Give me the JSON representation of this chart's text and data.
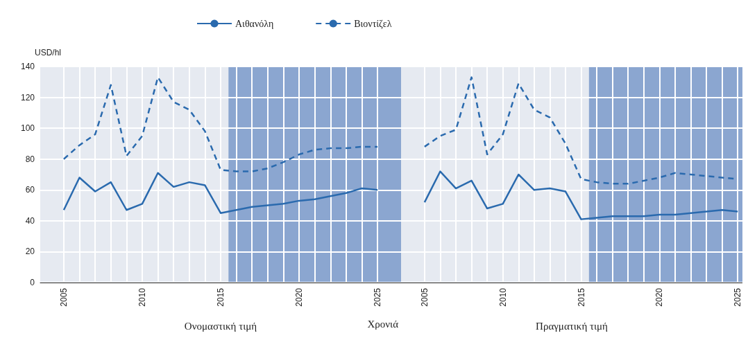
{
  "chart_data": [
    {
      "type": "line",
      "xlabel": "Ονομαστική τιμή",
      "ylabel": "USD/hl",
      "annotations": [
        "Χρονιά"
      ],
      "x": [
        2005,
        2006,
        2007,
        2008,
        2009,
        2010,
        2011,
        2012,
        2013,
        2014,
        2015,
        2016,
        2017,
        2018,
        2019,
        2020,
        2021,
        2022,
        2023,
        2024,
        2025
      ],
      "series": [
        {
          "name": "Αιθανόλη",
          "color": "#2a6aae",
          "line_style": "solid",
          "values": [
            47,
            68,
            59,
            65,
            47,
            51,
            71,
            62,
            65,
            63,
            45,
            47,
            49,
            50,
            51,
            53,
            54,
            56,
            58,
            61,
            60
          ]
        },
        {
          "name": "Βιοντίζελ",
          "color": "#2a6aae",
          "line_style": "dashed",
          "values": [
            80,
            89,
            96,
            128,
            82,
            95,
            133,
            117,
            112,
            98,
            73,
            72,
            72,
            74,
            78,
            83,
            86,
            87,
            87,
            88,
            88
          ]
        }
      ],
      "xlim": [
        2003.5,
        2026.5
      ],
      "ylim": [
        0,
        140
      ],
      "yticks": [
        0,
        20,
        40,
        60,
        80,
        100,
        120,
        140
      ],
      "xticks": [
        2005,
        {
          "value": 2006,
          "label": null
        },
        {
          "value": 2007,
          "label": null
        },
        {
          "value": 2008,
          "label": null
        },
        {
          "value": 2009,
          "label": null
        },
        2010,
        {
          "value": 2011,
          "label": null
        },
        {
          "value": 2012,
          "label": null
        },
        {
          "value": 2013,
          "label": null
        },
        {
          "value": 2014,
          "label": null
        },
        2015,
        {
          "value": 2016,
          "label": null
        },
        {
          "value": 2017,
          "label": null
        },
        {
          "value": 2018,
          "label": null
        },
        {
          "value": 2019,
          "label": null
        },
        2020,
        {
          "value": 2021,
          "label": null
        },
        {
          "value": 2022,
          "label": null
        },
        {
          "value": 2023,
          "label": null
        },
        {
          "value": 2024,
          "label": null
        },
        2025
      ],
      "bands": [
        {
          "axis": "x",
          "from": 2015.5,
          "to": 2026.5,
          "color": "#8ba6d0"
        }
      ],
      "grid": true,
      "legend": "top",
      "marker": "none"
    },
    {
      "type": "line",
      "xlabel": "Πραγματική τιμή",
      "x": [
        2005,
        2006,
        2007,
        2008,
        2009,
        2010,
        2011,
        2012,
        2013,
        2014,
        2015,
        2016,
        2017,
        2018,
        2019,
        2020,
        2021,
        2022,
        2023,
        2024,
        2025
      ],
      "series": [
        {
          "color": "#2a6aae",
          "line_style": "solid",
          "values": [
            52,
            72,
            61,
            66,
            48,
            51,
            70,
            60,
            61,
            59,
            41,
            42,
            43,
            43,
            43,
            44,
            44,
            45,
            46,
            47,
            46
          ]
        },
        {
          "color": "#2a6aae",
          "line_style": "dashed",
          "values": [
            88,
            95,
            99,
            133,
            83,
            96,
            129,
            112,
            107,
            90,
            67,
            65,
            64,
            64,
            66,
            68,
            71,
            70,
            69,
            68,
            67
          ]
        }
      ],
      "xlim": [
        2003.5,
        2025.3
      ],
      "ylim": [
        0,
        140
      ],
      "yticks": [
        0,
        20,
        40,
        60,
        80,
        100,
        120,
        140
      ],
      "xticks": [
        2005,
        {
          "value": 2006,
          "label": null
        },
        {
          "value": 2007,
          "label": null
        },
        {
          "value": 2008,
          "label": null
        },
        {
          "value": 2009,
          "label": null
        },
        2010,
        {
          "value": 2011,
          "label": null
        },
        {
          "value": 2012,
          "label": null
        },
        {
          "value": 2013,
          "label": null
        },
        {
          "value": 2014,
          "label": null
        },
        2015,
        {
          "value": 2016,
          "label": null
        },
        {
          "value": 2017,
          "label": null
        },
        {
          "value": 2018,
          "label": null
        },
        {
          "value": 2019,
          "label": null
        },
        2020,
        {
          "value": 2021,
          "label": null
        },
        {
          "value": 2022,
          "label": null
        },
        {
          "value": 2023,
          "label": null
        },
        {
          "value": 2024,
          "label": null
        },
        2025
      ],
      "bands": [
        {
          "axis": "x",
          "from": 2015.5,
          "to": 2025.3,
          "color": "#8ba6d0"
        }
      ],
      "grid": true,
      "legend": false,
      "marker": "none",
      "tick_labels": "x"
    }
  ]
}
